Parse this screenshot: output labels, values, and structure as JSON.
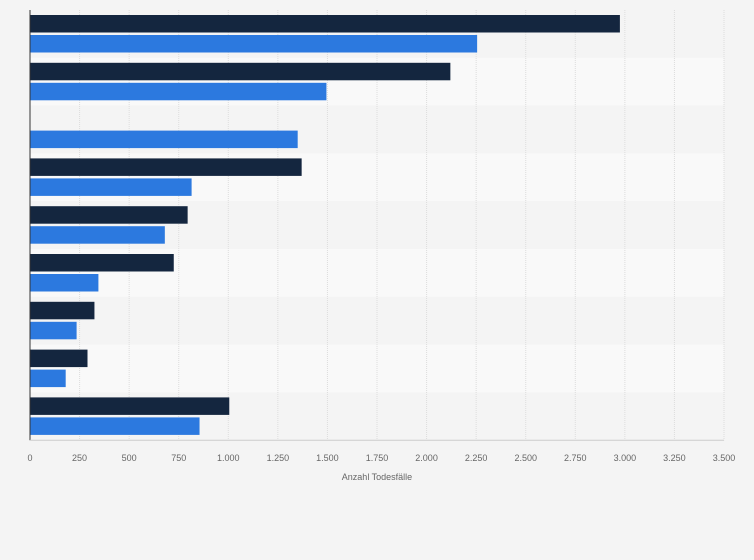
{
  "chart_data": {
    "type": "bar",
    "orientation": "horizontal",
    "title": "",
    "xlabel": "Anzahl Todesfälle",
    "ylabel": "",
    "xlim": [
      0,
      3500
    ],
    "x_ticks": [
      0,
      250,
      500,
      750,
      1000,
      1250,
      1500,
      1750,
      2000,
      2250,
      2500,
      2750,
      3000,
      3250,
      3500
    ],
    "x_tick_labels": [
      "0",
      "250",
      "500",
      "750",
      "1.000",
      "1.250",
      "1.500",
      "1.750",
      "2.000",
      "2.250",
      "2.500",
      "2.750",
      "3.000",
      "3.250",
      "3.500"
    ],
    "categories": [
      "",
      "",
      "",
      "",
      "",
      "",
      "",
      "",
      ""
    ],
    "series": [
      {
        "color": "#14263f",
        "values": [
          2975,
          2120,
          null,
          1370,
          795,
          725,
          325,
          290,
          1005
        ]
      },
      {
        "color": "#2c79df",
        "values": [
          2255,
          1495,
          1350,
          815,
          680,
          345,
          235,
          180,
          855
        ]
      }
    ],
    "grid": true,
    "legend": "none",
    "band_colors": [
      "#f4f4f4",
      "#f9f9f9"
    ]
  }
}
